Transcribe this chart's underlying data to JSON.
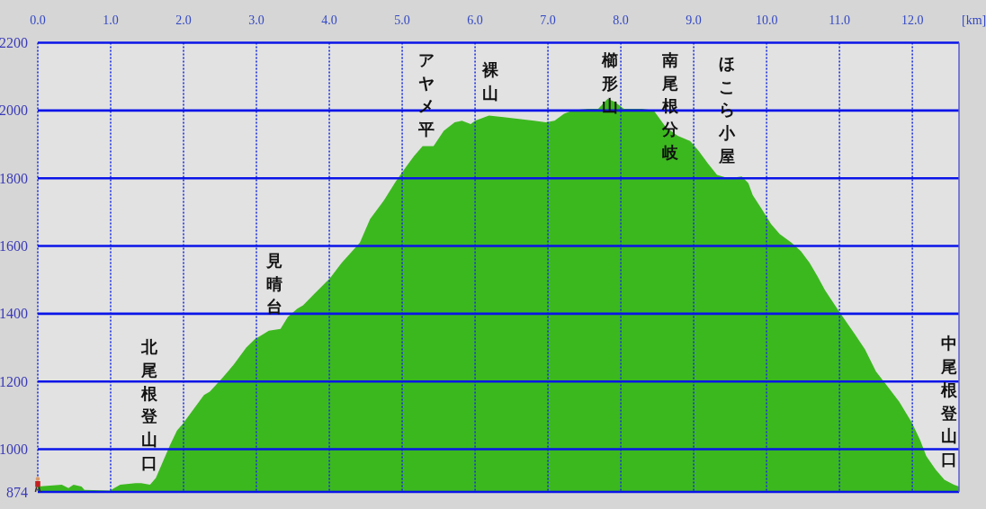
{
  "chart_data": {
    "type": "area",
    "xlabel": "[km]",
    "x": [
      0.0,
      0.33,
      0.42,
      0.49,
      0.6,
      0.64,
      0.99,
      1.13,
      1.34,
      1.42,
      1.54,
      1.62,
      1.73,
      1.81,
      1.91,
      1.99,
      2.16,
      2.28,
      2.36,
      2.53,
      2.69,
      2.86,
      2.98,
      3.06,
      3.17,
      3.33,
      3.43,
      3.56,
      3.64,
      3.8,
      4.01,
      4.17,
      4.42,
      4.56,
      4.75,
      4.91,
      5.04,
      5.16,
      5.28,
      5.43,
      5.57,
      5.72,
      5.82,
      5.94,
      6.0,
      6.19,
      6.39,
      6.6,
      6.81,
      6.97,
      7.09,
      7.22,
      7.34,
      7.55,
      7.69,
      7.82,
      7.92,
      8.04,
      8.29,
      8.45,
      8.62,
      8.78,
      8.95,
      9.07,
      9.19,
      9.32,
      9.48,
      9.66,
      9.75,
      9.81,
      9.93,
      10.06,
      10.18,
      10.34,
      10.47,
      10.59,
      10.7,
      10.8,
      11.0,
      11.21,
      11.35,
      11.5,
      11.66,
      11.82,
      11.99,
      12.11,
      12.19,
      12.32,
      12.44,
      12.57,
      12.64
    ],
    "values": [
      890,
      895,
      885,
      895,
      890,
      880,
      878,
      895,
      900,
      900,
      895,
      915,
      970,
      1010,
      1055,
      1075,
      1125,
      1160,
      1170,
      1210,
      1250,
      1300,
      1325,
      1335,
      1350,
      1355,
      1390,
      1415,
      1425,
      1460,
      1505,
      1550,
      1610,
      1680,
      1735,
      1790,
      1830,
      1865,
      1895,
      1895,
      1940,
      1965,
      1970,
      1960,
      1970,
      1985,
      1980,
      1975,
      1970,
      1965,
      1970,
      1990,
      2000,
      2005,
      2005,
      2035,
      2025,
      2005,
      2005,
      2000,
      1950,
      1925,
      1910,
      1880,
      1845,
      1810,
      1800,
      1805,
      1785,
      1750,
      1710,
      1665,
      1635,
      1610,
      1585,
      1550,
      1510,
      1470,
      1405,
      1340,
      1295,
      1230,
      1185,
      1140,
      1080,
      1025,
      980,
      940,
      910,
      895,
      890
    ],
    "color": "#3cb81f",
    "xlim": [
      0,
      12.64
    ],
    "xticks": [
      {
        "value": 0,
        "label": "0.0"
      },
      {
        "value": 1,
        "label": "1.0"
      },
      {
        "value": 2,
        "label": "2.0"
      },
      {
        "value": 3,
        "label": "3.0"
      },
      {
        "value": 4,
        "label": "4.0"
      },
      {
        "value": 5,
        "label": "5.0"
      },
      {
        "value": 6,
        "label": "6.0"
      },
      {
        "value": 7,
        "label": "7.0"
      },
      {
        "value": 8,
        "label": "8.0"
      },
      {
        "value": 9,
        "label": "9.0"
      },
      {
        "value": 10,
        "label": "10.0"
      },
      {
        "value": 11,
        "label": "11.0"
      },
      {
        "value": 12,
        "label": "12.0"
      }
    ],
    "ylim": [
      874,
      2200
    ],
    "yticks": [
      874,
      1000,
      1200,
      1400,
      1600,
      1800,
      2000,
      2200
    ],
    "grid": true,
    "annotations": [
      {
        "text": "北尾根登山口",
        "x": 1.53,
        "y": 895
      },
      {
        "text": "見晴台",
        "x": 3.25,
        "y": 1355
      },
      {
        "text": "アヤメ平",
        "x": 5.33,
        "y": 1895
      },
      {
        "text": "裸山",
        "x": 6.21,
        "y": 1985
      },
      {
        "text": "櫛形山",
        "x": 7.85,
        "y": 2030
      },
      {
        "text": "南尾根分岐",
        "x": 8.68,
        "y": 1940
      },
      {
        "text": "ほこら小屋",
        "x": 9.45,
        "y": 1800
      },
      {
        "text": "中尾根登山口",
        "x": 12.5,
        "y": 905
      }
    ]
  }
}
